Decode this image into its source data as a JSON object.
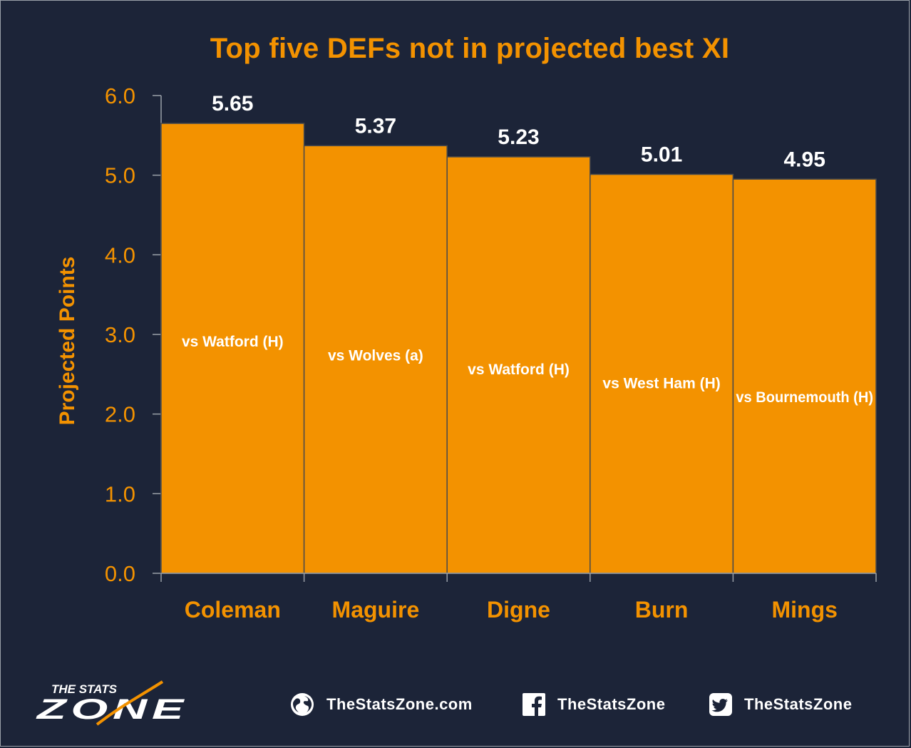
{
  "colors": {
    "background": "#1c2438",
    "bar": "#f39200",
    "bar_edge": "#4a4a4a",
    "accent_text": "#f39200",
    "value_text": "#ffffff"
  },
  "chart_data": {
    "type": "bar",
    "title": "Top five DEFs not in projected best XI",
    "xlabel": "",
    "ylabel": "Projected Points",
    "ylim": [
      0,
      6
    ],
    "yticks": [
      "0.0",
      "1.0",
      "2.0",
      "3.0",
      "4.0",
      "5.0",
      "6.0"
    ],
    "categories": [
      "Coleman",
      "Maguire",
      "Digne",
      "Burn",
      "Mings"
    ],
    "values": [
      5.65,
      5.37,
      5.23,
      5.01,
      4.95
    ],
    "value_labels": [
      "5.65",
      "5.37",
      "5.23",
      "5.01",
      "4.95"
    ],
    "bar_annotations": [
      "vs Watford (H)",
      "vs Wolves (a)",
      "vs Watford (H)",
      "vs West Ham (H)",
      "vs Bournemouth (H)"
    ],
    "grid": false,
    "legend": "none"
  },
  "footer": {
    "logo_top": "THE STATS",
    "logo_bottom": "ZONE",
    "website": "TheStatsZone.com",
    "facebook": "TheStatsZone",
    "twitter": "TheStatsZone",
    "icons": [
      "globe-icon",
      "facebook-icon",
      "twitter-icon"
    ]
  }
}
